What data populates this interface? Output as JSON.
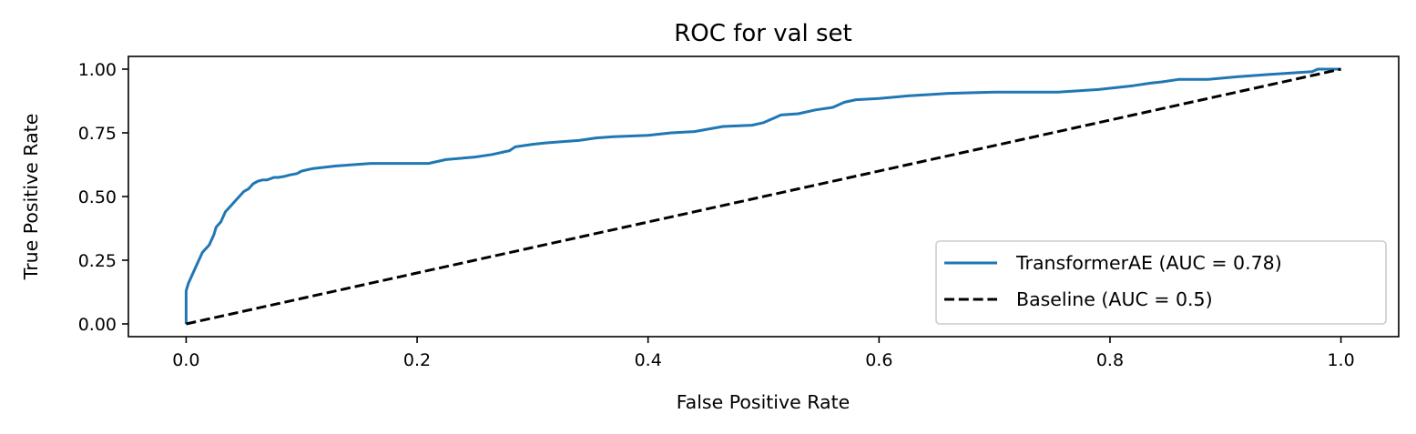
{
  "chart_data": {
    "type": "line",
    "title": "ROC for val set",
    "xlabel": "False Positive Rate",
    "ylabel": "True Positive Rate",
    "xlim": [
      -0.05,
      1.05
    ],
    "ylim": [
      -0.05,
      1.05
    ],
    "xticks": [
      0.0,
      0.2,
      0.4,
      0.6,
      0.8,
      1.0
    ],
    "xtick_labels": [
      "0.0",
      "0.2",
      "0.4",
      "0.6",
      "0.8",
      "1.0"
    ],
    "yticks": [
      0.0,
      0.25,
      0.5,
      0.75,
      1.0
    ],
    "ytick_labels": [
      "0.00",
      "0.25",
      "0.50",
      "0.75",
      "1.00"
    ],
    "grid": false,
    "legend_position": "lower-right",
    "series": [
      {
        "name": "TransformerAE (AUC = 0.78)",
        "color": "#1f77b4",
        "style": "solid",
        "x": [
          0.0,
          0.0,
          0.002,
          0.004,
          0.006,
          0.008,
          0.01,
          0.012,
          0.014,
          0.016,
          0.018,
          0.02,
          0.022,
          0.024,
          0.026,
          0.028,
          0.03,
          0.034,
          0.036,
          0.038,
          0.04,
          0.044,
          0.046,
          0.05,
          0.054,
          0.058,
          0.062,
          0.066,
          0.07,
          0.076,
          0.08,
          0.086,
          0.09,
          0.096,
          0.1,
          0.11,
          0.13,
          0.16,
          0.19,
          0.21,
          0.225,
          0.25,
          0.265,
          0.28,
          0.285,
          0.3,
          0.31,
          0.325,
          0.34,
          0.355,
          0.37,
          0.4,
          0.42,
          0.44,
          0.465,
          0.49,
          0.5,
          0.51,
          0.515,
          0.53,
          0.545,
          0.56,
          0.57,
          0.58,
          0.6,
          0.625,
          0.66,
          0.7,
          0.755,
          0.79,
          0.82,
          0.835,
          0.845,
          0.86,
          0.885,
          0.91,
          0.94,
          0.975,
          0.98,
          1.0
        ],
        "y": [
          0.0,
          0.13,
          0.16,
          0.18,
          0.2,
          0.22,
          0.24,
          0.26,
          0.28,
          0.29,
          0.3,
          0.31,
          0.33,
          0.35,
          0.38,
          0.39,
          0.4,
          0.44,
          0.45,
          0.46,
          0.47,
          0.49,
          0.5,
          0.52,
          0.53,
          0.55,
          0.56,
          0.565,
          0.565,
          0.575,
          0.575,
          0.58,
          0.585,
          0.59,
          0.6,
          0.61,
          0.62,
          0.63,
          0.63,
          0.63,
          0.645,
          0.655,
          0.665,
          0.68,
          0.695,
          0.705,
          0.71,
          0.715,
          0.72,
          0.73,
          0.735,
          0.74,
          0.75,
          0.755,
          0.775,
          0.78,
          0.79,
          0.81,
          0.82,
          0.825,
          0.84,
          0.85,
          0.87,
          0.88,
          0.885,
          0.895,
          0.905,
          0.91,
          0.91,
          0.92,
          0.935,
          0.945,
          0.95,
          0.96,
          0.96,
          0.97,
          0.98,
          0.99,
          1.0,
          1.0
        ]
      },
      {
        "name": "Baseline (AUC = 0.5)",
        "color": "#000000",
        "style": "dashed",
        "x": [
          0.0,
          1.0
        ],
        "y": [
          0.0,
          1.0
        ]
      }
    ]
  }
}
